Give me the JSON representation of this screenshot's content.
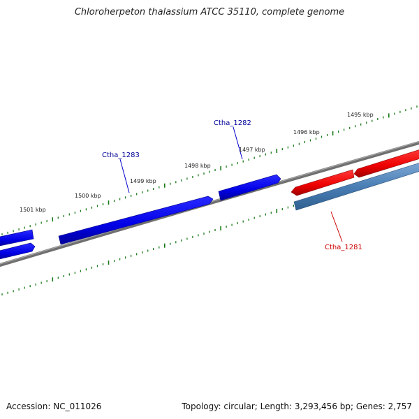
{
  "title": "Chloroherpeton thalassium ATCC 35110, complete genome",
  "footer": {
    "accession": "Accession: NC_011026",
    "genome_info": "Topology: circular; Length: 3,293,456 bp; Genes: 2,757"
  },
  "scale": {
    "unit": "kbp",
    "labels": [
      "1495 kbp",
      "1496 kbp",
      "1497 kbp",
      "1498 kbp",
      "1499 kbp",
      "1500 kbp",
      "1501 kbp"
    ]
  },
  "genes": [
    {
      "name": "Ctha_1281",
      "strand": "reverse",
      "label_color": "#cc0000"
    },
    {
      "name": "Ctha_1282",
      "strand": "forward",
      "label_color": "#000099"
    },
    {
      "name": "Ctha_1283",
      "strand": "forward",
      "label_color": "#000099"
    }
  ],
  "colors": {
    "forward_gene": "#0000ee",
    "reverse_gene": "#ee0000",
    "reverse_gene_band": "#4a7fb5",
    "backbone": "#808080",
    "ticks": "#1a7a1a"
  }
}
